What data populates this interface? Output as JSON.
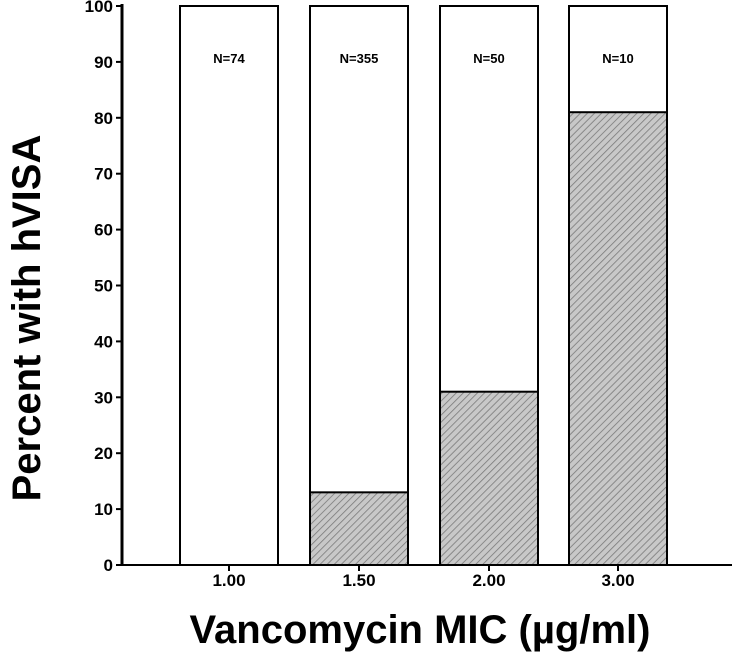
{
  "chart_data": {
    "type": "bar",
    "title": "",
    "xlabel": "Vancomycin MIC (µg/ml)",
    "ylabel": "Percent with hVISA",
    "ylim": [
      0,
      100
    ],
    "yticks": [
      "0",
      "10",
      "20",
      "30",
      "40",
      "50",
      "60",
      "70",
      "80",
      "90",
      "100"
    ],
    "categories": [
      "1.00",
      "1.50",
      "2.00",
      "3.00"
    ],
    "values": [
      0,
      13,
      31,
      81
    ],
    "bar_annotations": [
      "N=74",
      "N=355",
      "N=50",
      "N=10"
    ],
    "grid": false,
    "legend": "none",
    "colors": {
      "fill": "#c8c8c8",
      "hatch": "#7a7a7a",
      "outline": "#000000",
      "background": "#ffffff"
    }
  }
}
